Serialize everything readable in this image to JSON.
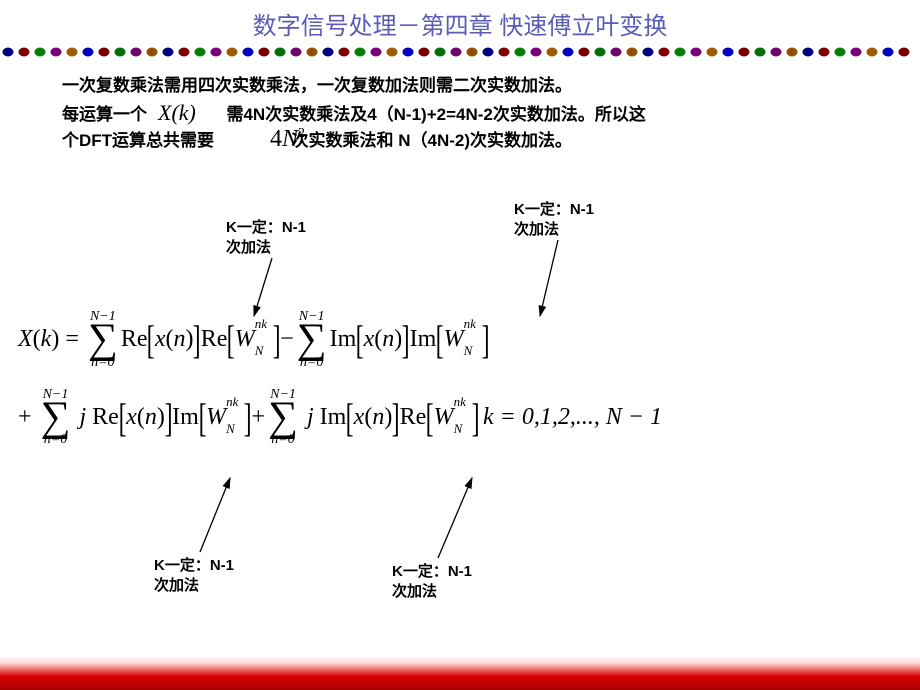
{
  "title": "数字信号处理－第四章 快速傅立叶变换",
  "title_color": "#5b5bb8",
  "divider": {
    "colors": [
      "#000080",
      "#800000",
      "#008000",
      "#7a007a",
      "#a05a00",
      "#0000c0",
      "#7a0000",
      "#007000",
      "#700070",
      "#905000"
    ],
    "radius": 4.5,
    "spacing": 16
  },
  "line1": "一次复数乘法需用四次实数乘法，一次复数加法则需二次实数加法。",
  "line2a_pre": "每运算一个",
  "xk": "X(k)",
  "line2a_post": "需4N次实数乘法及4（N-1)+2=4N-2次实数加法。所以这",
  "line2b_pre": "个DFT运算总共需要",
  "fourN2_pre": "4",
  "fourN2_N": "N",
  "fourN2_exp": "2",
  "line2b_post": "次实数乘法和 N（4N-2)次实数加法。",
  "annot1": "K一定：N-1\n次加法",
  "annot2": "K一定：N-1\n次加法",
  "annot3": "K一定：N-1\n次加法",
  "annot4": "K一定：N-1\n次加法",
  "formula": {
    "Xk": "X",
    "k": "k",
    "sumTop": "N−1",
    "sumBot": "n=0",
    "Re": "Re",
    "Im": "Im",
    "xn": "x",
    "n": "n",
    "W": "W",
    "Wsup": "nk",
    "Wsub": "N",
    "j": "j",
    "trail": "k = 0,1,2,..., N − 1"
  },
  "style": {
    "title_fontsize": 24,
    "body_fontsize": 17,
    "annot_fontsize": 15,
    "arrow_color": "#000000"
  }
}
